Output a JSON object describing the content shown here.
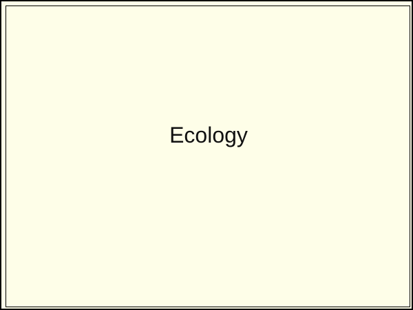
{
  "card": {
    "title": "Ecology",
    "background_color": "#fefee8",
    "border_color": "#000000",
    "text_color": "#111111"
  }
}
